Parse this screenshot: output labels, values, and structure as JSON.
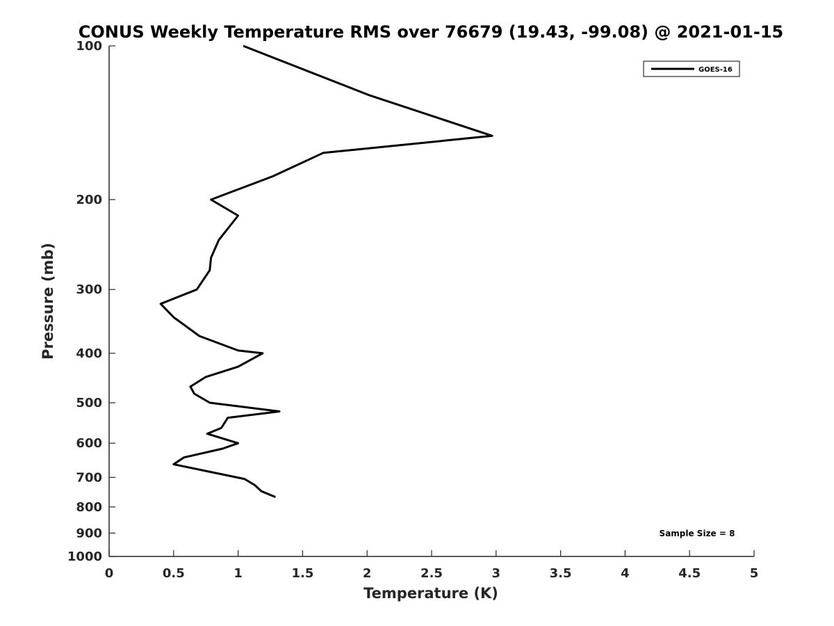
{
  "chart_data": {
    "type": "line",
    "title": "CONUS Weekly Temperature RMS over 76679 (19.43, -99.08) @ 2021-01-15",
    "xlabel": "Temperature (K)",
    "ylabel": "Pressure (mb)",
    "xlim": [
      0,
      5
    ],
    "ylim": [
      100,
      1000
    ],
    "yscale": "log",
    "y_reversed": true,
    "x_ticks": [
      "0",
      "0.5",
      "1",
      "1.5",
      "2",
      "2.5",
      "3",
      "3.5",
      "4",
      "4.5",
      "5"
    ],
    "x_tick_values": [
      0,
      0.5,
      1,
      1.5,
      2,
      2.5,
      3,
      3.5,
      4,
      4.5,
      5
    ],
    "y_ticks": [
      "100",
      "200",
      "300",
      "400",
      "500",
      "600",
      "700",
      "800",
      "900",
      "1000"
    ],
    "y_tick_values": [
      100,
      200,
      300,
      400,
      500,
      600,
      700,
      800,
      900,
      1000
    ],
    "grid": false,
    "legend_position": "top-right",
    "series": [
      {
        "name": "GOES-16",
        "color": "#000000",
        "x": [
          1.04,
          2.02,
          2.97,
          1.66,
          1.27,
          0.79,
          1.0,
          0.85,
          0.79,
          0.78,
          0.68,
          0.4,
          0.5,
          0.7,
          1.0,
          1.19,
          1.0,
          0.75,
          0.63,
          0.66,
          0.78,
          1.32,
          0.92,
          0.87,
          0.76,
          1.0,
          0.88,
          0.58,
          0.5,
          0.75,
          1.05,
          1.13,
          1.18,
          1.29
        ],
        "y": [
          100,
          125,
          150,
          162,
          180,
          200,
          215,
          240,
          260,
          275,
          300,
          320,
          340,
          370,
          395,
          400,
          425,
          445,
          465,
          480,
          500,
          520,
          535,
          560,
          575,
          600,
          615,
          640,
          660,
          680,
          705,
          725,
          745,
          765
        ]
      }
    ],
    "annotations": [
      "Sample Size = 8"
    ]
  },
  "colors": {
    "line": "#000000",
    "axis": "#262626",
    "background": "#ffffff"
  }
}
